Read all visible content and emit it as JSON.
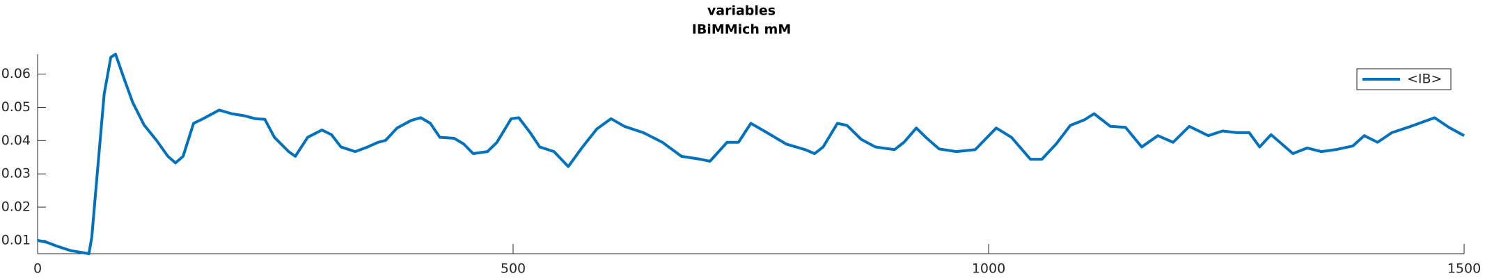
{
  "chart_data": {
    "type": "line",
    "title": "variables",
    "subtitle": "IBiMMich mM",
    "x": [
      0,
      10,
      20,
      35,
      54,
      57,
      63,
      70,
      77,
      82,
      90,
      100,
      112,
      125,
      137,
      145,
      153,
      164,
      174,
      191,
      204,
      217,
      229,
      239,
      249,
      264,
      271,
      284,
      299,
      309,
      319,
      334,
      347,
      358,
      366,
      378,
      393,
      403,
      413,
      423,
      438,
      448,
      458,
      473,
      483,
      498,
      506,
      518,
      528,
      543,
      558,
      573,
      588,
      603,
      617,
      637,
      657,
      677,
      697,
      707,
      725,
      737,
      750,
      767,
      787,
      807,
      817,
      826,
      841,
      851,
      866,
      881,
      901,
      911,
      924,
      934,
      948,
      966,
      986,
      1008,
      1024,
      1044,
      1056,
      1071,
      1086,
      1101,
      1111,
      1128,
      1144,
      1161,
      1178,
      1194,
      1211,
      1231,
      1246,
      1261,
      1274,
      1285,
      1297,
      1320,
      1335,
      1350,
      1365,
      1383,
      1395,
      1409,
      1424,
      1444,
      1469,
      1484,
      1500
    ],
    "series": [
      {
        "name": "<IB>",
        "color": "#0072bd",
        "values": [
          0.01,
          0.0094,
          0.0083,
          0.0069,
          0.006,
          0.011,
          0.031,
          0.054,
          0.0651,
          0.066,
          0.0594,
          0.0515,
          0.0447,
          0.0401,
          0.0353,
          0.0333,
          0.0353,
          0.0452,
          0.0466,
          0.0492,
          0.0481,
          0.0475,
          0.0466,
          0.0464,
          0.041,
          0.0367,
          0.0353,
          0.041,
          0.0432,
          0.0418,
          0.0381,
          0.0367,
          0.0381,
          0.0395,
          0.0401,
          0.0438,
          0.0461,
          0.0469,
          0.0452,
          0.041,
          0.0407,
          0.039,
          0.0361,
          0.0367,
          0.0395,
          0.0466,
          0.0469,
          0.0424,
          0.0381,
          0.0367,
          0.0322,
          0.0381,
          0.0435,
          0.0466,
          0.0443,
          0.0424,
          0.0395,
          0.0353,
          0.0344,
          0.0338,
          0.0395,
          0.0395,
          0.0452,
          0.0424,
          0.039,
          0.0373,
          0.0361,
          0.0381,
          0.0452,
          0.0446,
          0.0404,
          0.0381,
          0.0373,
          0.0395,
          0.0438,
          0.041,
          0.0375,
          0.0367,
          0.0373,
          0.0438,
          0.041,
          0.0344,
          0.0344,
          0.039,
          0.0446,
          0.0463,
          0.0481,
          0.0443,
          0.044,
          0.0381,
          0.0415,
          0.0395,
          0.0443,
          0.0415,
          0.0429,
          0.0424,
          0.0424,
          0.0381,
          0.0418,
          0.0361,
          0.0378,
          0.0367,
          0.0373,
          0.0384,
          0.0415,
          0.0395,
          0.0424,
          0.0443,
          0.0469,
          0.044,
          0.0415
        ]
      }
    ],
    "xlim": [
      0,
      1500
    ],
    "xticks": [
      0,
      500,
      1000,
      1500
    ],
    "ylim": [
      0.006,
      0.066
    ],
    "yticks": [
      0.01,
      0.02,
      0.03,
      0.04,
      0.05,
      0.06
    ],
    "grid": false,
    "legend": "upper right"
  }
}
